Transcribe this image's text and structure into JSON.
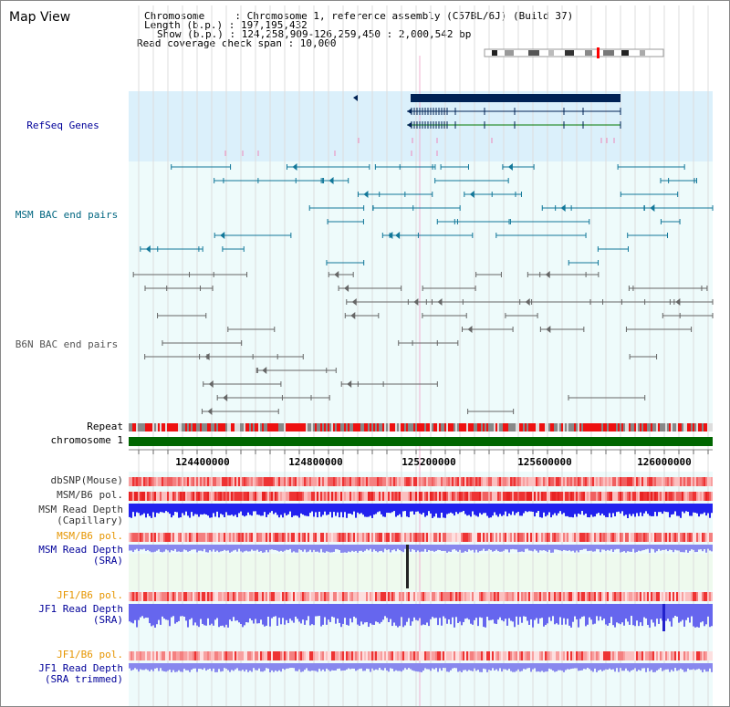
{
  "page": {
    "title": "Map View"
  },
  "info": {
    "chromosome": "Chromosome     : Chromosome 1, reference assembly (C57BL/6J) (Build 37)",
    "length": "Length (b.p.) : 197,195,432",
    "show": "Show (b.p.) : 124,258,909-126,259,450 : 2,000,542 bp",
    "coverage": "Read coverage check span : 10,000"
  },
  "tracks": {
    "refseq": "RefSeq Genes",
    "msm_bac": "MSM BAC end pairs",
    "b6n_bac": "B6N BAC end pairs",
    "repeat": "Repeat",
    "chromosome": "chromosome 1",
    "dbsnp": "dbSNP(Mouse)",
    "msm_b6_pol": "MSM/B6 pol.",
    "msm_read_cap_1": "MSM Read Depth",
    "msm_read_cap_2": "(Capillary)",
    "msm_b6_pol_2": "MSM/B6 pol.",
    "msm_read_sra_1": "MSM Read Depth",
    "msm_read_sra_2": "(SRA)",
    "jf1_b6_pol": "JF1/B6 pol.",
    "jf1_read_sra_1": "JF1 Read Depth",
    "jf1_read_sra_2": "(SRA)",
    "jf1_b6_pol_2": "JF1/B6 pol.",
    "jf1_read_trim_1": "JF1 Read Depth",
    "jf1_read_trim_2": "(SRA trimmed)"
  },
  "axis": {
    "ticks": [
      "124400000",
      "124800000",
      "125200000",
      "125600000",
      "126000000"
    ]
  },
  "colors": {
    "refseq_label": "#000099",
    "msm_label": "#006680",
    "orange_label": "#e69500",
    "blue_label": "#000099",
    "refseq_bg": "#dbf0fb",
    "bac_bg": "#eefbfb",
    "gene_dark": "#002255",
    "repeat_red": "#ee1111",
    "chrom_green": "#006600",
    "depth_blue": "#2222ee"
  }
}
